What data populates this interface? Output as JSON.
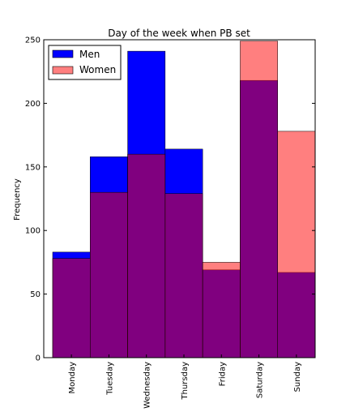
{
  "chart_data": {
    "type": "bar",
    "title": "Day of the week when PB set",
    "xlabel": "",
    "ylabel": "Frequency",
    "ylim": [
      0,
      250
    ],
    "yticks": [
      0,
      50,
      100,
      150,
      200,
      250
    ],
    "categories": [
      "Monday",
      "Tuesday",
      "Wednesday",
      "Thursday",
      "Friday",
      "Saturday",
      "Sunday"
    ],
    "series": [
      {
        "name": "Men",
        "color": "#0000ff",
        "values": [
          83,
          158,
          241,
          164,
          69,
          218,
          67
        ]
      },
      {
        "name": "Women",
        "color": "#ff0000",
        "opacity": 0.5,
        "values": [
          78,
          130,
          160,
          129,
          75,
          249,
          178
        ]
      }
    ],
    "legend_position": "top-left",
    "overlap_color": "#800080",
    "grid": false
  }
}
